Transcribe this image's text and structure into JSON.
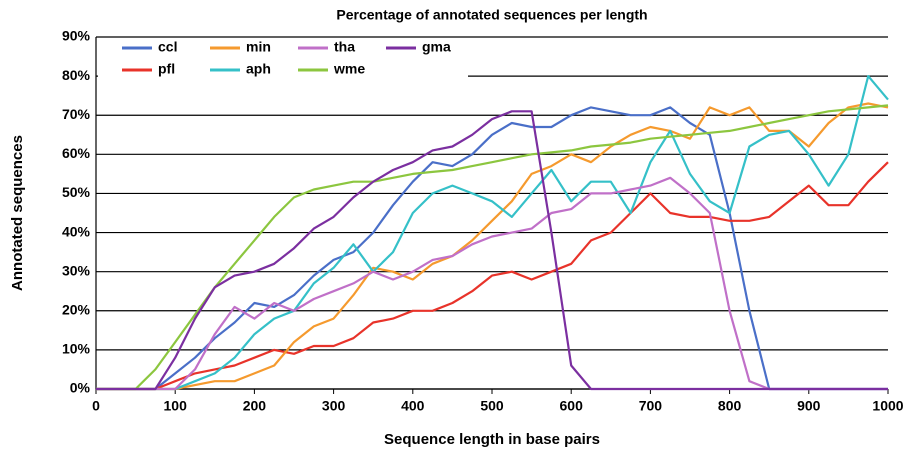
{
  "chart_data": {
    "type": "line",
    "title": "Percentage of annotated sequences per length",
    "x_label": "Sequence length in base pairs",
    "y_label": "Annotated sequences",
    "x": [
      0,
      25,
      50,
      75,
      100,
      125,
      150,
      175,
      200,
      225,
      250,
      275,
      300,
      325,
      350,
      375,
      400,
      425,
      450,
      475,
      500,
      525,
      550,
      575,
      600,
      625,
      650,
      675,
      700,
      725,
      750,
      775,
      800,
      825,
      850,
      875,
      900,
      925,
      950,
      975,
      1000
    ],
    "series": [
      {
        "name": "ccl",
        "color": "#4a6fc8",
        "values": [
          0,
          0,
          0,
          0,
          4,
          8,
          13,
          17,
          22,
          21,
          24,
          29,
          33,
          35,
          40,
          47,
          53,
          58,
          57,
          60,
          65,
          68,
          67,
          67,
          70,
          72,
          71,
          70,
          70,
          72,
          68,
          65,
          45,
          20,
          0,
          0,
          0,
          0,
          0,
          0,
          0
        ]
      },
      {
        "name": "pfl",
        "color": "#e8332a",
        "values": [
          0,
          0,
          0,
          0,
          2,
          4,
          5,
          6,
          8,
          10,
          9,
          11,
          11,
          13,
          17,
          18,
          20,
          20,
          22,
          25,
          29,
          30,
          28,
          30,
          32,
          38,
          40,
          45,
          50,
          45,
          44,
          44,
          43,
          43,
          44,
          48,
          52,
          47,
          47,
          53,
          58
        ]
      },
      {
        "name": "min",
        "color": "#f59a2e",
        "values": [
          0,
          0,
          0,
          0,
          0,
          1,
          2,
          2,
          4,
          6,
          12,
          16,
          18,
          24,
          31,
          30,
          28,
          32,
          34,
          38,
          43,
          48,
          55,
          57,
          60,
          58,
          62,
          65,
          67,
          66,
          64,
          72,
          70,
          72,
          66,
          66,
          62,
          68,
          72,
          73,
          72
        ]
      },
      {
        "name": "aph",
        "color": "#35c0c8",
        "values": [
          0,
          0,
          0,
          0,
          0,
          2,
          4,
          8,
          14,
          18,
          20,
          27,
          31,
          37,
          30,
          35,
          45,
          50,
          52,
          50,
          48,
          44,
          50,
          56,
          48,
          53,
          53,
          45,
          58,
          66,
          55,
          48,
          45,
          62,
          65,
          66,
          60,
          52,
          60,
          80,
          74
        ]
      },
      {
        "name": "tha",
        "color": "#c070c8",
        "values": [
          0,
          0,
          0,
          0,
          0,
          5,
          14,
          21,
          18,
          22,
          20,
          23,
          25,
          27,
          30,
          28,
          30,
          33,
          34,
          37,
          39,
          40,
          41,
          45,
          46,
          50,
          50,
          51,
          52,
          54,
          50,
          45,
          20,
          2,
          0,
          0,
          0,
          0,
          0,
          0,
          0
        ]
      },
      {
        "name": "wme",
        "color": "#8cc63f",
        "values": [
          0,
          0,
          0,
          5,
          12,
          19,
          26,
          32,
          38,
          44,
          49,
          51,
          52,
          53,
          53,
          54,
          55,
          55.5,
          56,
          57,
          58,
          59,
          60,
          60.5,
          61,
          62,
          62.5,
          63,
          64,
          64.5,
          65,
          65.5,
          66,
          67,
          68,
          69,
          70,
          71,
          71.5,
          72,
          72.5
        ]
      },
      {
        "name": "gma",
        "color": "#7b2fa0",
        "values": [
          0,
          0,
          0,
          0,
          8,
          18,
          26,
          29,
          30,
          32,
          36,
          41,
          44,
          49,
          53,
          56,
          58,
          61,
          62,
          65,
          69,
          71,
          71,
          40,
          6,
          0,
          0,
          0,
          0,
          0,
          0,
          0,
          0,
          0,
          0,
          0,
          0,
          0,
          0,
          0,
          0
        ]
      }
    ],
    "xlim": [
      0,
      1000
    ],
    "xticks": [
      0,
      100,
      200,
      300,
      400,
      500,
      600,
      700,
      800,
      900,
      1000
    ],
    "ylim": [
      0,
      90
    ],
    "yticks": [
      {
        "value": 0,
        "label": "0%"
      },
      {
        "value": 10,
        "label": "10%"
      },
      {
        "value": 20,
        "label": "20%"
      },
      {
        "value": 30,
        "label": "30%"
      },
      {
        "value": 40,
        "label": "40%"
      },
      {
        "value": 50,
        "label": "50%"
      },
      {
        "value": 60,
        "label": "60%"
      },
      {
        "value": 70,
        "label": "70%"
      },
      {
        "value": 80,
        "label": "80%"
      },
      {
        "value": 90,
        "label": "90%"
      }
    ],
    "grid": true,
    "legend": "top-left"
  }
}
